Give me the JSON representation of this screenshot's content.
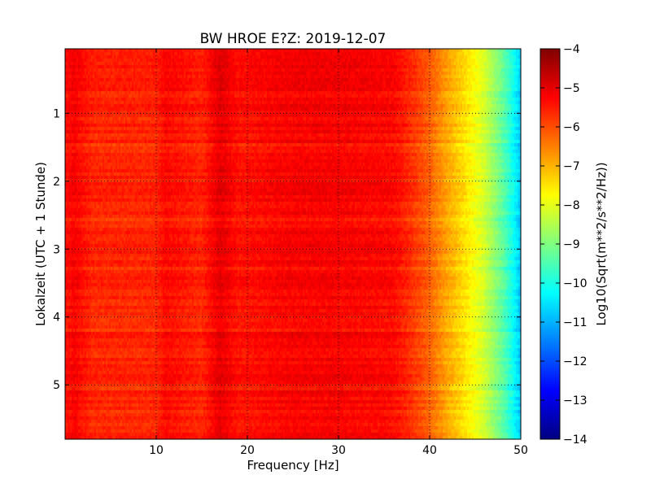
{
  "chart_data": {
    "type": "heatmap",
    "title": "BW HROE E?Z: 2019-12-07",
    "xlabel": "Frequency [Hz]",
    "ylabel": "Lokalzeit (UTC + 1 Stunde)",
    "xlim": [
      0,
      50
    ],
    "ylim": [
      5.8,
      0.05
    ],
    "x_ticks": [
      10,
      20,
      30,
      40,
      50
    ],
    "y_ticks": [
      1,
      2,
      3,
      4,
      5
    ],
    "grid": true,
    "colorbar": {
      "label": "Log10(Sqrt(m**2/s**2/Hz))",
      "range": [
        -14,
        -4
      ],
      "ticks": [
        -4,
        -5,
        -6,
        -7,
        -8,
        -9,
        -10,
        -11,
        -12,
        -13,
        -14
      ],
      "colormap": "jet"
    },
    "spectral_profile": {
      "frequency_hz": [
        0,
        1,
        3,
        10,
        11,
        15,
        17,
        19,
        25,
        30,
        36,
        38,
        40,
        42,
        44,
        46,
        48,
        49,
        50
      ],
      "log10_amplitude": [
        -5.4,
        -5.2,
        -5.6,
        -5.6,
        -5.3,
        -5.6,
        -5.0,
        -5.4,
        -5.2,
        -5.2,
        -5.3,
        -5.7,
        -6.2,
        -6.9,
        -7.5,
        -8.2,
        -9.3,
        -10.0,
        -10.8
      ]
    }
  }
}
